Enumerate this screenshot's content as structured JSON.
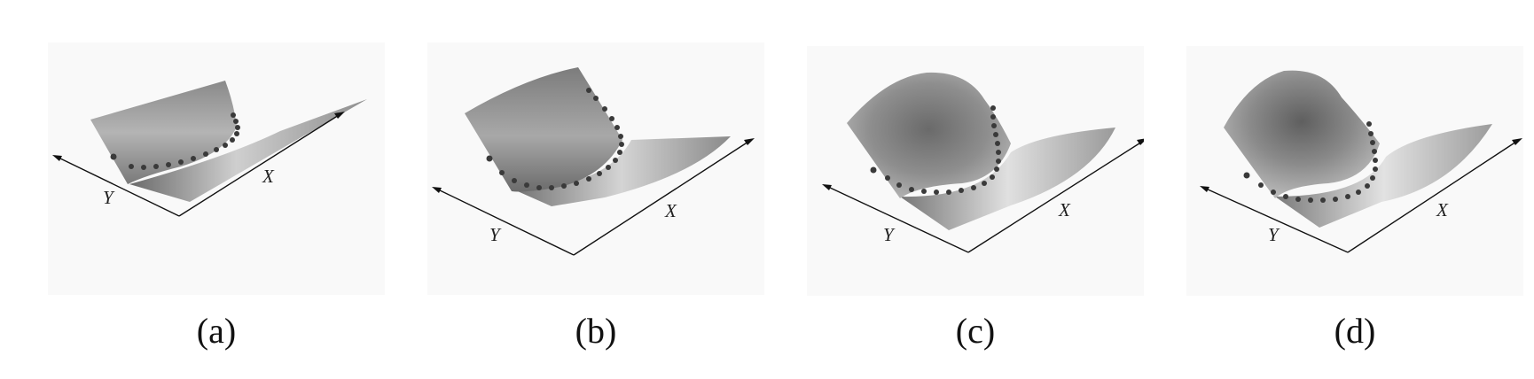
{
  "colors": {
    "background": "#ffffff",
    "panel_background": "#f9f9f9",
    "surface_dark": "#6f6f6f",
    "surface_mid": "#9a9a9a",
    "surface_light": "#d6d6d6",
    "dots": "#3a3a3a",
    "axes": "#111111"
  },
  "panels": [
    {
      "id": "a",
      "caption": "(a)",
      "x_label": "X",
      "y_label": "Y"
    },
    {
      "id": "b",
      "caption": "(b)",
      "x_label": "X",
      "y_label": "Y"
    },
    {
      "id": "c",
      "caption": "(c)",
      "x_label": "X",
      "y_label": "Y"
    },
    {
      "id": "d",
      "caption": "(d)",
      "x_label": "X",
      "y_label": "Y"
    }
  ]
}
